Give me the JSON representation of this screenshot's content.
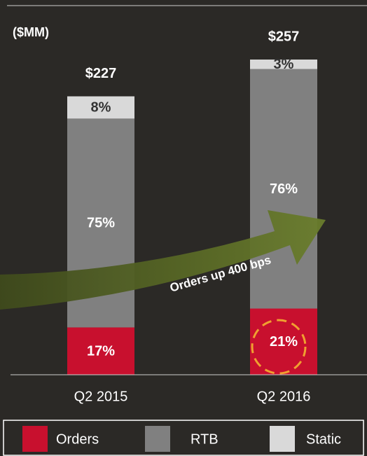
{
  "chart_data": {
    "type": "bar",
    "unit_label": "($MM)",
    "categories": [
      "Q2 2015",
      "Q2 2016"
    ],
    "totals": {
      "values": [
        227,
        257
      ],
      "value_labels": [
        "$227",
        "$257"
      ]
    },
    "series": [
      {
        "name": "Orders",
        "color": "#c8102e",
        "values": [
          17,
          21
        ],
        "value_labels": [
          "17%",
          "21%"
        ]
      },
      {
        "name": "RTB",
        "color": "#808080",
        "values": [
          75,
          76
        ],
        "value_labels": [
          "75%",
          "76%"
        ]
      },
      {
        "name": "Static",
        "color": "#d9d9d9",
        "values": [
          8,
          3
        ],
        "value_labels": [
          "8%",
          "3%"
        ]
      }
    ],
    "annotation": "Orders up 400 bps",
    "legend": "bottom"
  }
}
